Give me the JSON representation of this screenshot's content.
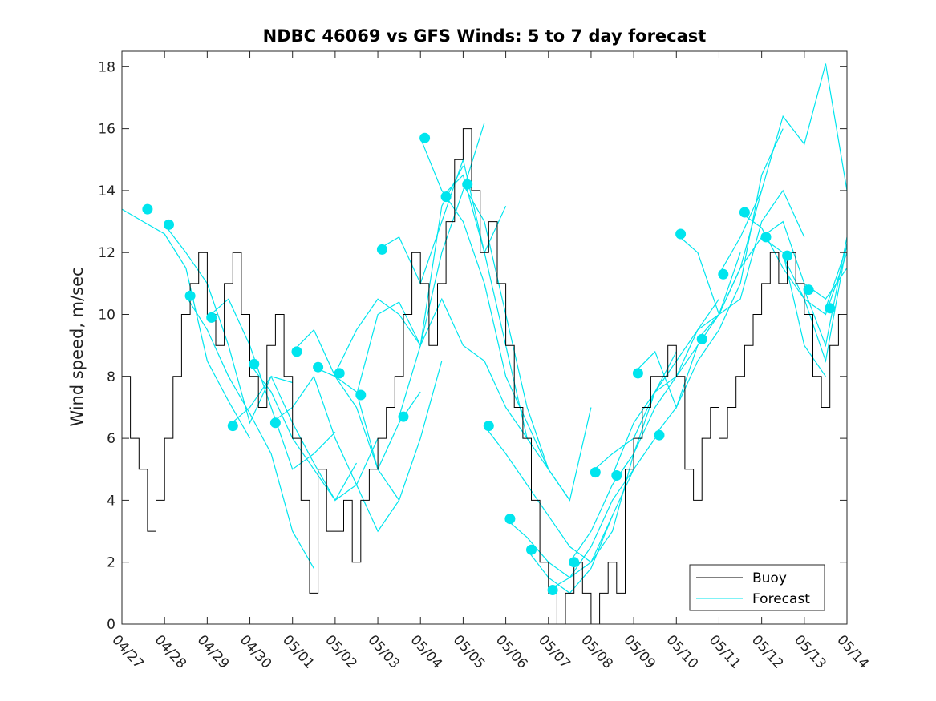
{
  "chart_data": {
    "type": "line",
    "title": "NDBC 46069 vs GFS Winds: 5 to 7 day forecast",
    "xlabel": "",
    "ylabel": "Wind speed, m/sec",
    "x_unit": "day",
    "xlim": [
      0,
      17
    ],
    "ylim": [
      0,
      18.5
    ],
    "x_ticks": [
      0,
      1,
      2,
      3,
      4,
      5,
      6,
      7,
      8,
      9,
      10,
      11,
      12,
      13,
      14,
      15,
      16,
      17
    ],
    "x_tick_labels": [
      "04/27",
      "04/28",
      "04/29",
      "04/30",
      "05/01",
      "05/02",
      "05/03",
      "05/04",
      "05/05",
      "05/06",
      "05/07",
      "05/08",
      "05/09",
      "05/10",
      "05/11",
      "05/12",
      "05/13",
      "05/14"
    ],
    "y_ticks": [
      0,
      2,
      4,
      6,
      8,
      10,
      12,
      14,
      16,
      18
    ],
    "y_tick_labels": [
      "0",
      "2",
      "4",
      "6",
      "8",
      "10",
      "12",
      "14",
      "16",
      "18"
    ],
    "grid": false,
    "legend": {
      "position": "bottom-right",
      "entries": [
        "Buoy",
        "Forecast"
      ]
    },
    "colors": {
      "buoy": "#000000",
      "forecast": "#00e5ee",
      "markers": "#00e5ee"
    },
    "buoy": {
      "name": "Buoy",
      "x": [
        0.0,
        0.2,
        0.4,
        0.6,
        0.8,
        1.0,
        1.2,
        1.4,
        1.6,
        1.8,
        2.0,
        2.2,
        2.4,
        2.6,
        2.8,
        3.0,
        3.2,
        3.4,
        3.6,
        3.8,
        4.0,
        4.2,
        4.4,
        4.6,
        4.8,
        5.0,
        5.2,
        5.4,
        5.6,
        5.8,
        6.0,
        6.2,
        6.4,
        6.6,
        6.8,
        7.0,
        7.2,
        7.4,
        7.6,
        7.8,
        8.0,
        8.2,
        8.4,
        8.6,
        8.8,
        9.0,
        9.2,
        9.4,
        9.6,
        9.8,
        10.0,
        10.2,
        10.4,
        10.6,
        10.8,
        11.0,
        11.2,
        11.4,
        11.6,
        11.8,
        12.0,
        12.2,
        12.4,
        12.6,
        12.8,
        13.0,
        13.2,
        13.4,
        13.6,
        13.8,
        14.0,
        14.2,
        14.4,
        14.6,
        14.8,
        15.0,
        15.2,
        15.4,
        15.6,
        15.8,
        16.0,
        16.2,
        16.4,
        16.6,
        16.8,
        17.0
      ],
      "y": [
        8,
        6,
        5,
        3,
        4,
        6,
        8,
        10,
        11,
        12,
        10,
        9,
        11,
        12,
        10,
        8,
        7,
        9,
        10,
        8,
        6,
        4,
        1,
        5,
        3,
        3,
        4,
        2,
        4,
        5,
        6,
        7,
        8,
        10,
        12,
        11,
        9,
        11,
        13,
        15,
        16,
        14,
        12,
        13,
        11,
        9,
        7,
        6,
        4,
        2,
        1,
        0,
        1,
        2,
        1,
        0,
        1,
        2,
        1,
        5,
        6,
        7,
        8,
        8,
        9,
        8,
        5,
        4,
        6,
        7,
        6,
        7,
        8,
        9,
        10,
        11,
        12,
        11,
        12,
        11,
        10,
        8,
        7,
        9,
        10,
        11
      ]
    },
    "forecast_series": [
      {
        "x": [
          0.0,
          0.5,
          1.0,
          1.5,
          2.0,
          2.5,
          3.0
        ],
        "y": [
          13.4,
          13.0,
          12.6,
          11.5,
          8.5,
          7.2,
          6.0
        ]
      },
      {
        "x": [
          1.0,
          1.5,
          2.0,
          2.5,
          3.0,
          3.5,
          4.0
        ],
        "y": [
          12.9,
          12.0,
          11.0,
          9.0,
          6.5,
          8.0,
          7.8
        ]
      },
      {
        "x": [
          1.5,
          2.0,
          2.5,
          3.0,
          3.5,
          4.0,
          4.5
        ],
        "y": [
          10.6,
          9.5,
          8.0,
          6.8,
          5.5,
          3.0,
          1.8
        ]
      },
      {
        "x": [
          2.0,
          2.5,
          3.0,
          3.5,
          4.0,
          4.5,
          5.0
        ],
        "y": [
          9.9,
          10.5,
          9.0,
          7.0,
          5.0,
          5.5,
          6.2
        ]
      },
      {
        "x": [
          2.5,
          3.0,
          3.5,
          4.0,
          4.5,
          5.0,
          5.5
        ],
        "y": [
          6.4,
          7.0,
          8.0,
          6.5,
          5.2,
          4.0,
          5.2
        ]
      },
      {
        "x": [
          3.0,
          3.5,
          4.0,
          4.5,
          5.0,
          5.5,
          6.0
        ],
        "y": [
          8.4,
          7.5,
          6.0,
          5.0,
          4.0,
          4.5,
          6.0
        ]
      },
      {
        "x": [
          3.5,
          4.0,
          4.5,
          5.0,
          5.5,
          6.0,
          6.5
        ],
        "y": [
          6.5,
          7.0,
          8.0,
          6.0,
          4.5,
          3.0,
          4.0
        ]
      },
      {
        "x": [
          4.0,
          4.5,
          5.0,
          5.5,
          6.0,
          6.5,
          7.0
        ],
        "y": [
          8.8,
          9.5,
          8.0,
          7.0,
          5.0,
          6.5,
          7.5
        ]
      },
      {
        "x": [
          4.5,
          5.0,
          5.5,
          6.0,
          6.5,
          7.0,
          7.5
        ],
        "y": [
          8.3,
          8.0,
          7.5,
          5.0,
          4.0,
          6.0,
          8.5
        ]
      },
      {
        "x": [
          5.0,
          5.5,
          6.0,
          6.5,
          7.0,
          7.5,
          8.0
        ],
        "y": [
          8.1,
          9.5,
          10.5,
          10.0,
          9.0,
          13.5,
          14.8
        ]
      },
      {
        "x": [
          5.5,
          6.0,
          6.5,
          7.0,
          7.5,
          8.0,
          8.5
        ],
        "y": [
          7.4,
          10.0,
          10.4,
          9.0,
          12.0,
          14.0,
          16.2
        ]
      },
      {
        "x": [
          6.0,
          6.5,
          7.0,
          7.5,
          8.0,
          8.5,
          9.0
        ],
        "y": [
          12.1,
          12.5,
          11.0,
          13.0,
          15.0,
          12.0,
          13.5
        ]
      },
      {
        "x": [
          6.5,
          7.0,
          7.5,
          8.0,
          8.5,
          9.0,
          9.5
        ],
        "y": [
          6.7,
          9.0,
          10.5,
          9.0,
          8.5,
          7.0,
          6.0
        ]
      },
      {
        "x": [
          7.0,
          7.5,
          8.0,
          8.5,
          9.0,
          9.5,
          10.0
        ],
        "y": [
          15.7,
          14.0,
          13.0,
          11.0,
          8.0,
          6.5,
          5.0
        ]
      },
      {
        "x": [
          7.5,
          8.0,
          8.5,
          9.0,
          9.5,
          10.0,
          10.5
        ],
        "y": [
          13.8,
          14.5,
          12.0,
          9.0,
          6.0,
          5.0,
          4.0
        ]
      },
      {
        "x": [
          8.0,
          8.5,
          9.0,
          9.5,
          10.0,
          10.5,
          11.0
        ],
        "y": [
          14.2,
          13.0,
          10.0,
          7.0,
          5.0,
          4.0,
          7.0
        ]
      },
      {
        "x": [
          8.5,
          9.0,
          9.5,
          10.0,
          10.5,
          11.0,
          11.5
        ],
        "y": [
          6.4,
          5.5,
          4.5,
          3.5,
          2.5,
          2.0,
          3.5
        ]
      },
      {
        "x": [
          9.0,
          9.5,
          10.0,
          10.5,
          11.0,
          11.5,
          12.0
        ],
        "y": [
          3.4,
          2.8,
          2.0,
          1.5,
          2.5,
          4.0,
          5.0
        ]
      },
      {
        "x": [
          9.5,
          10.0,
          10.5,
          11.0,
          11.5,
          12.0,
          12.5
        ],
        "y": [
          2.4,
          1.5,
          1.0,
          1.8,
          3.5,
          5.0,
          6.0
        ]
      },
      {
        "x": [
          10.0,
          10.5,
          11.0,
          11.5,
          12.0,
          12.5,
          13.0
        ],
        "y": [
          1.1,
          1.5,
          2.0,
          3.0,
          5.5,
          7.5,
          8.8
        ]
      },
      {
        "x": [
          10.5,
          11.0,
          11.5,
          12.0,
          12.5,
          13.0,
          13.5
        ],
        "y": [
          2.0,
          3.0,
          4.5,
          5.5,
          7.0,
          8.0,
          9.0
        ]
      },
      {
        "x": [
          11.0,
          11.5,
          12.0,
          12.5,
          13.0,
          13.5,
          14.0
        ],
        "y": [
          4.9,
          5.5,
          6.0,
          7.5,
          8.5,
          9.5,
          10.5
        ]
      },
      {
        "x": [
          11.5,
          12.0,
          12.5,
          13.0,
          13.5,
          14.0,
          14.5
        ],
        "y": [
          4.8,
          6.5,
          7.5,
          8.0,
          9.5,
          10.0,
          12.0
        ]
      },
      {
        "x": [
          12.0,
          12.5,
          13.0,
          13.5,
          14.0,
          14.5,
          15.0
        ],
        "y": [
          8.1,
          8.8,
          7.0,
          9.0,
          10.0,
          11.5,
          14.0
        ]
      },
      {
        "x": [
          12.5,
          13.0,
          13.5,
          14.0,
          14.5,
          15.0,
          15.5
        ],
        "y": [
          6.1,
          7.0,
          8.5,
          9.5,
          11.0,
          14.5,
          16.0
        ]
      },
      {
        "x": [
          13.0,
          13.5,
          14.0,
          14.5,
          15.0,
          15.5,
          16.0
        ],
        "y": [
          12.6,
          12.0,
          10.0,
          10.5,
          13.0,
          14.0,
          12.5
        ]
      },
      {
        "x": [
          13.5,
          14.0,
          14.5,
          15.0,
          15.5,
          16.0,
          16.5
        ],
        "y": [
          9.2,
          10.0,
          11.5,
          12.5,
          12.0,
          9.0,
          8.0
        ]
      },
      {
        "x": [
          14.0,
          14.5,
          15.0,
          15.5,
          16.0,
          16.5,
          17.0
        ],
        "y": [
          11.3,
          12.5,
          14.0,
          16.4,
          15.5,
          18.1,
          14.0
        ]
      },
      {
        "x": [
          14.5,
          15.0,
          15.5,
          16.0,
          16.5,
          17.0
        ],
        "y": [
          13.3,
          12.8,
          11.5,
          10.5,
          10.0,
          12.0
        ]
      },
      {
        "x": [
          15.0,
          15.5,
          16.0,
          16.5,
          17.0
        ],
        "y": [
          12.5,
          13.0,
          11.0,
          10.5,
          11.5
        ]
      },
      {
        "x": [
          15.5,
          16.0,
          16.5,
          17.0
        ],
        "y": [
          11.9,
          10.5,
          8.5,
          12.3
        ]
      },
      {
        "x": [
          16.0,
          16.5,
          17.0
        ],
        "y": [
          10.8,
          9.0,
          12.5
        ]
      },
      {
        "x": [
          16.5,
          17.0
        ],
        "y": [
          10.2,
          12.2
        ]
      }
    ],
    "markers": {
      "x": [
        0.6,
        1.1,
        1.6,
        2.1,
        2.6,
        3.1,
        3.6,
        4.1,
        4.6,
        5.1,
        5.6,
        6.1,
        6.6,
        7.1,
        7.6,
        8.1,
        8.6,
        9.1,
        9.6,
        10.1,
        10.6,
        11.1,
        11.6,
        12.1,
        12.6,
        13.1,
        13.6,
        14.1,
        14.6,
        15.1,
        15.6,
        16.1,
        16.6
      ],
      "y": [
        13.4,
        12.9,
        10.6,
        9.9,
        6.4,
        8.4,
        6.5,
        8.8,
        8.3,
        8.1,
        7.4,
        12.1,
        6.7,
        15.7,
        13.8,
        14.2,
        6.4,
        3.4,
        2.4,
        1.1,
        2.0,
        4.9,
        4.8,
        8.1,
        6.1,
        12.6,
        9.2,
        11.3,
        13.3,
        12.5,
        11.9,
        10.8,
        10.2
      ]
    }
  }
}
